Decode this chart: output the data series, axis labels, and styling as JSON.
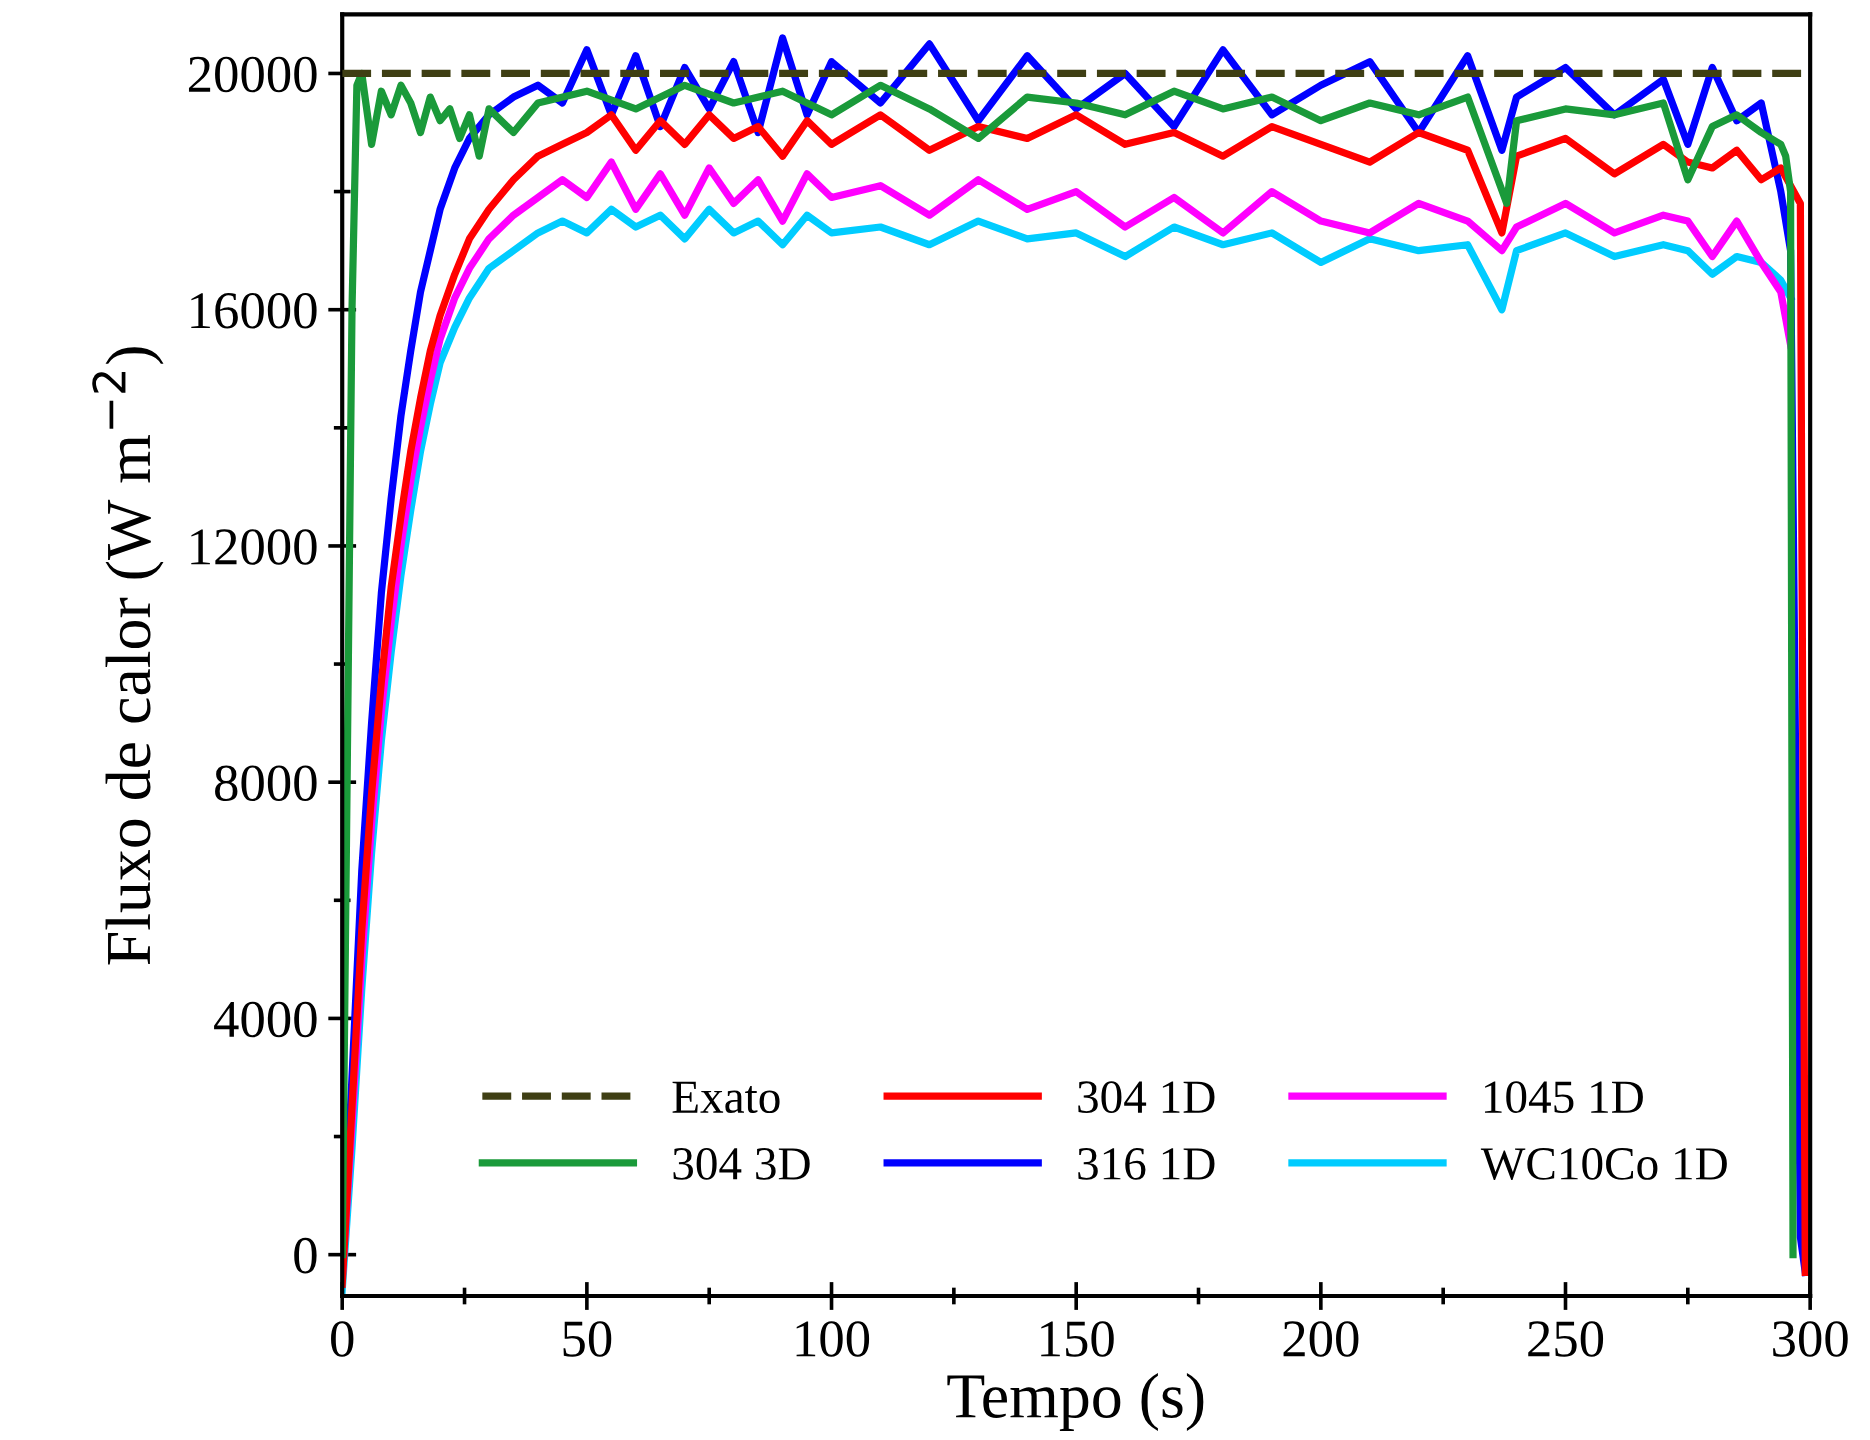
{
  "chart_data": {
    "type": "line",
    "xlabel": "Tempo (s)",
    "ylabel": "Fluxo de calor (W m$^{−2}$)",
    "xlim": [
      0,
      300
    ],
    "xticks": [
      0,
      50,
      100,
      150,
      200,
      250,
      300
    ],
    "ylim": [
      -700,
      21000
    ],
    "yticks": [
      0,
      4000,
      8000,
      12000,
      16000,
      20000
    ],
    "grid": false,
    "legend": "bottom",
    "x": [
      0,
      2,
      4,
      6,
      8,
      10,
      12,
      14,
      16,
      18,
      20,
      23,
      26,
      30,
      35,
      40,
      45,
      50,
      55,
      60,
      65,
      70,
      75,
      80,
      85,
      90,
      95,
      100,
      110,
      120,
      130,
      140,
      150,
      160,
      170,
      180,
      190,
      200,
      210,
      220,
      230,
      237,
      240,
      250,
      260,
      270,
      275,
      280,
      285,
      290,
      294,
      296,
      298,
      299
    ],
    "series": [
      {
        "name": "Exato",
        "color": "#3f3f14",
        "line_style": "dashed",
        "x": [
          0,
          300
        ],
        "values": [
          20000,
          20000
        ]
      },
      {
        "name": "304 3D",
        "color": "#1a9a3a",
        "x": [
          0,
          1,
          2,
          3,
          4,
          5,
          6,
          8,
          10,
          12,
          14,
          16,
          18,
          20,
          22,
          24,
          26,
          28,
          30,
          35,
          40,
          50,
          60,
          70,
          80,
          90,
          100,
          110,
          120,
          130,
          140,
          150,
          160,
          170,
          180,
          190,
          200,
          210,
          220,
          230,
          238,
          240,
          250,
          260,
          270,
          275,
          280,
          285,
          290,
          294,
          295,
          296,
          296.5
        ],
        "values": [
          0,
          8000,
          16000,
          19800,
          20000,
          19400,
          18800,
          19700,
          19300,
          19800,
          19500,
          19000,
          19600,
          19200,
          19400,
          18900,
          19300,
          18600,
          19400,
          19000,
          19500,
          19700,
          19400,
          19800,
          19500,
          19700,
          19300,
          19800,
          19400,
          18900,
          19600,
          19500,
          19300,
          19700,
          19400,
          19600,
          19200,
          19500,
          19300,
          19600,
          17800,
          19200,
          19400,
          19300,
          19500,
          18200,
          19100,
          19300,
          19000,
          18800,
          18600,
          18000,
          0
        ]
      },
      {
        "name": "304 1D",
        "color": "#ff0000",
        "values": [
          -500,
          2500,
          5500,
          7800,
          9700,
          11300,
          12500,
          13600,
          14500,
          15300,
          15900,
          16600,
          17200,
          17700,
          18200,
          18600,
          18800,
          19000,
          19300,
          18700,
          19200,
          18800,
          19300,
          18900,
          19100,
          18600,
          19200,
          18800,
          19300,
          18700,
          19100,
          18900,
          19300,
          18800,
          19000,
          18600,
          19100,
          18800,
          18500,
          19000,
          18700,
          17300,
          18600,
          18900,
          18300,
          18800,
          18500,
          18400,
          18700,
          18200,
          18400,
          18100,
          17800,
          -300
        ]
      },
      {
        "name": "316 1D",
        "color": "#0000ff",
        "values": [
          -300,
          3000,
          6500,
          9000,
          11200,
          12800,
          14200,
          15300,
          16300,
          17000,
          17700,
          18400,
          18900,
          19300,
          19600,
          19800,
          19500,
          20400,
          19300,
          20300,
          19100,
          20100,
          19400,
          20200,
          19000,
          20600,
          19300,
          20200,
          19500,
          20500,
          19200,
          20300,
          19400,
          20000,
          19100,
          20400,
          19300,
          19800,
          20200,
          19000,
          20300,
          18700,
          19600,
          20100,
          19300,
          19900,
          18800,
          20100,
          19200,
          19500,
          18000,
          17000,
          300,
          -300
        ]
      },
      {
        "name": "1045 1D",
        "color": "#ff00ff",
        "values": [
          -400,
          2200,
          5000,
          7300,
          9200,
          10700,
          12000,
          13100,
          14000,
          14800,
          15500,
          16200,
          16700,
          17200,
          17600,
          17900,
          18200,
          17900,
          18500,
          17700,
          18300,
          17600,
          18400,
          17800,
          18200,
          17500,
          18300,
          17900,
          18100,
          17600,
          18200,
          17700,
          18000,
          17400,
          17900,
          17300,
          18000,
          17500,
          17300,
          17800,
          17500,
          17000,
          17400,
          17800,
          17300,
          17600,
          17500,
          16900,
          17500,
          16800,
          16300,
          15400,
          null,
          null
        ]
      },
      {
        "name": "WC10Co 1D",
        "color": "#00ccff",
        "values": [
          -600,
          1800,
          4500,
          6800,
          8700,
          10200,
          11500,
          12600,
          13600,
          14400,
          15100,
          15700,
          16200,
          16700,
          17000,
          17300,
          17500,
          17300,
          17700,
          17400,
          17600,
          17200,
          17700,
          17300,
          17500,
          17100,
          17600,
          17300,
          17400,
          17100,
          17500,
          17200,
          17300,
          16900,
          17400,
          17100,
          17300,
          16800,
          17200,
          17000,
          17100,
          16000,
          17000,
          17300,
          16900,
          17100,
          17000,
          16600,
          16900,
          16800,
          16500,
          16200,
          null,
          null
        ]
      }
    ]
  }
}
